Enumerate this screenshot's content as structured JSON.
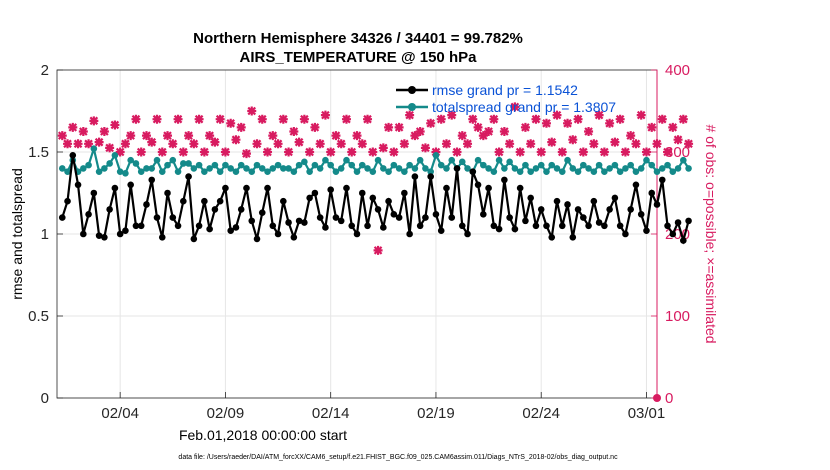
{
  "chart_data": {
    "type": "line",
    "title_line1": "Northern Hemisphere 34326 / 34401 = 99.782%",
    "title_line2": "AIRS_TEMPERATURE @ 150 hPa",
    "xlabel": "Feb.01,2018 00:00:00 start",
    "ylabel_left": "rmse and totalspread",
    "ylabel_right": "# of obs: o=possible; ×=assimilated",
    "footnote": "data file: /Users/raeder/DAI/ATM_forcXX/CAM6_setup/f.e21.FHIST_BGC.f09_025.CAM6assim.011/Diags_NTrS_2018-02/obs_diag_output.nc",
    "x_range_days": [
      0,
      28.5
    ],
    "x_ticks": [
      {
        "day": 3,
        "label": "02/04"
      },
      {
        "day": 8,
        "label": "02/09"
      },
      {
        "day": 13,
        "label": "02/14"
      },
      {
        "day": 18,
        "label": "02/19"
      },
      {
        "day": 23,
        "label": "02/24"
      },
      {
        "day": 28,
        "label": "03/01"
      }
    ],
    "ylim_left": [
      0,
      2
    ],
    "yticks_left": [
      "0",
      "0.5",
      "1",
      "1.5",
      "2"
    ],
    "ylim_right": [
      0,
      400
    ],
    "yticks_right": [
      "0",
      "100",
      "200",
      "300",
      "400"
    ],
    "x_step_days": 0.25,
    "grid": true,
    "legend_position": "top-right",
    "colors": {
      "rmse": "#000000",
      "spread": "#148a8a",
      "obs": "#d81b60",
      "legend_text": "#0a52d6"
    },
    "series": [
      {
        "name": "rmse grand pr = 1.1542",
        "key": "rmse",
        "axis": "left",
        "values": [
          1.1,
          1.2,
          1.48,
          1.3,
          1.0,
          1.12,
          1.25,
          0.99,
          0.98,
          1.15,
          1.28,
          1.0,
          1.02,
          1.3,
          1.05,
          1.05,
          1.18,
          1.33,
          1.1,
          0.98,
          1.25,
          1.1,
          1.05,
          1.2,
          1.35,
          0.97,
          1.05,
          1.2,
          1.03,
          1.15,
          1.2,
          1.28,
          1.02,
          1.04,
          1.15,
          1.28,
          1.08,
          0.97,
          1.13,
          1.28,
          1.05,
          1.0,
          1.2,
          1.07,
          0.98,
          1.08,
          1.07,
          1.22,
          1.25,
          1.1,
          1.04,
          1.27,
          1.1,
          1.08,
          1.28,
          1.05,
          1.0,
          1.25,
          1.05,
          1.22,
          1.15,
          1.04,
          1.2,
          1.12,
          1.1,
          1.25,
          1.0,
          1.35,
          1.05,
          1.1,
          1.35,
          1.12,
          1.02,
          1.28,
          1.1,
          1.4,
          1.05,
          1.0,
          1.38,
          1.3,
          1.12,
          1.28,
          1.05,
          1.03,
          1.33,
          1.1,
          1.03,
          1.28,
          1.08,
          1.22,
          1.05,
          1.15,
          1.05,
          0.98,
          1.2,
          1.05,
          1.18,
          0.98,
          1.15,
          1.1,
          1.05,
          1.2,
          1.07,
          1.05,
          1.15,
          1.22,
          1.05,
          1.0,
          1.15,
          1.3,
          1.12,
          1.02,
          1.25,
          1.18,
          1.33,
          1.05,
          1.0,
          1.07,
          0.96,
          1.08
        ]
      },
      {
        "name": "totalspread grand pr = 1.3807",
        "key": "spread",
        "axis": "left",
        "values": [
          1.4,
          1.38,
          1.45,
          1.38,
          1.4,
          1.42,
          1.52,
          1.38,
          1.4,
          1.43,
          1.48,
          1.38,
          1.37,
          1.45,
          1.43,
          1.38,
          1.4,
          1.4,
          1.45,
          1.38,
          1.42,
          1.45,
          1.38,
          1.43,
          1.43,
          1.4,
          1.42,
          1.38,
          1.4,
          1.42,
          1.38,
          1.42,
          1.4,
          1.38,
          1.42,
          1.4,
          1.38,
          1.42,
          1.4,
          1.38,
          1.4,
          1.42,
          1.4,
          1.4,
          1.38,
          1.42,
          1.44,
          1.38,
          1.42,
          1.4,
          1.45,
          1.42,
          1.38,
          1.4,
          1.45,
          1.42,
          1.38,
          1.42,
          1.4,
          1.38,
          1.45,
          1.4,
          1.38,
          1.42,
          1.4,
          1.38,
          1.42,
          1.4,
          1.45,
          1.4,
          1.38,
          1.48,
          1.42,
          1.4,
          1.45,
          1.4,
          1.44,
          1.4,
          1.38,
          1.45,
          1.42,
          1.4,
          1.38,
          1.45,
          1.4,
          1.44,
          1.4,
          1.38,
          1.42,
          1.38,
          1.4,
          1.42,
          1.38,
          1.42,
          1.4,
          1.38,
          1.45,
          1.4,
          1.38,
          1.42,
          1.4,
          1.38,
          1.42,
          1.38,
          1.4,
          1.42,
          1.38,
          1.4,
          1.42,
          1.38,
          1.4,
          1.45,
          1.42,
          1.38,
          1.4,
          1.42,
          1.38,
          1.4,
          1.45,
          1.4
        ]
      },
      {
        "name": "obs assimilated",
        "key": "obs",
        "axis": "right",
        "values": [
          320,
          310,
          330,
          310,
          325,
          310,
          338,
          312,
          325,
          305,
          333,
          300,
          310,
          320,
          340,
          300,
          320,
          312,
          340,
          300,
          320,
          310,
          340,
          300,
          320,
          310,
          340,
          300,
          320,
          312,
          340,
          300,
          335,
          315,
          330,
          298,
          350,
          310,
          340,
          300,
          320,
          310,
          340,
          300,
          325,
          312,
          340,
          300,
          330,
          310,
          345,
          300,
          320,
          310,
          340,
          300,
          320,
          310,
          340,
          300,
          180,
          305,
          330,
          300,
          330,
          310,
          345,
          320,
          325,
          305,
          335,
          300,
          340,
          310,
          345,
          300,
          320,
          310,
          340,
          330,
          320,
          325,
          340,
          300,
          325,
          310,
          355,
          300,
          330,
          310,
          340,
          300,
          335,
          312,
          345,
          300,
          335,
          315,
          340,
          300,
          325,
          310,
          345,
          300,
          335,
          312,
          340,
          300,
          320,
          310,
          345,
          300,
          330,
          310,
          340,
          300,
          330,
          315,
          340,
          310
        ]
      }
    ]
  }
}
